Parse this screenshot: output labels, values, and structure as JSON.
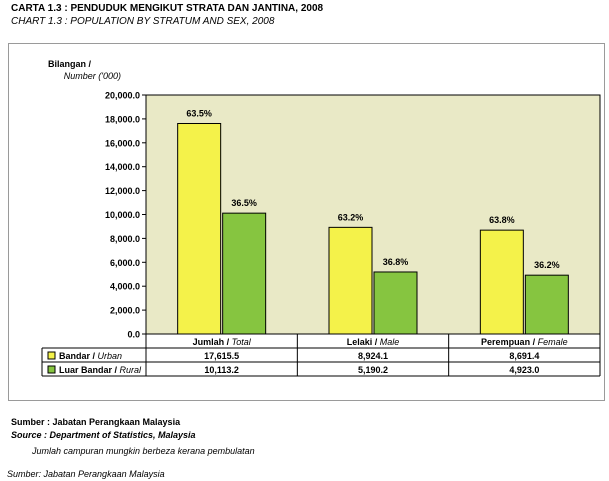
{
  "title": "CARTA 1.3 : PENDUDUK MENGIKUT STRATA DAN JANTINA, 2008",
  "subtitle": "CHART 1.3 : POPULATION BY STRATUM AND SEX, 2008",
  "footer": {
    "source_ms": "Sumber : Jabatan Perangkaan Malaysia",
    "source_en": "Source : Department of Statistics, Malaysia",
    "note": "Jumlah campuran mungkin berbeza kerana pembulatan",
    "source_bottom": "Sumber: Jabatan Perangkaan Malaysia"
  },
  "colors": {
    "urban": "#f4f24a",
    "rural": "#86c540",
    "plot_bg": "#e9e9c6"
  },
  "chart_data": {
    "type": "bar",
    "ylabel_line1": "Bilangan /",
    "ylabel_line2": "Number ('000)",
    "ylim": [
      0,
      20000
    ],
    "yticks": [
      "0.0",
      "2,000.0",
      "4,000.0",
      "6,000.0",
      "8,000.0",
      "10,000.0",
      "12,000.0",
      "14,000.0",
      "16,000.0",
      "18,000.0",
      "20,000.0"
    ],
    "categories": [
      {
        "main": "Jumlah / ",
        "sub": "Total"
      },
      {
        "main": "Lelaki / ",
        "sub": "Male"
      },
      {
        "main": "Perempuan / ",
        "sub": "Female"
      }
    ],
    "grid": false,
    "legend_placement": "table-left",
    "series": [
      {
        "key": "urban",
        "name_main": "Bandar / ",
        "name_sub": "Urban",
        "values": [
          17615.5,
          8924.1,
          8691.4
        ],
        "labels": [
          "17,615.5",
          "8,924.1",
          "8,691.4"
        ],
        "pct": [
          "63.5%",
          "63.2%",
          "63.8%"
        ]
      },
      {
        "key": "rural",
        "name_main": "Luar Bandar / ",
        "name_sub": "Rural",
        "values": [
          10113.2,
          5190.2,
          4923.0
        ],
        "labels": [
          "10,113.2",
          "5,190.2",
          "4,923.0"
        ],
        "pct": [
          "36.5%",
          "36.8%",
          "36.2%"
        ]
      }
    ]
  }
}
